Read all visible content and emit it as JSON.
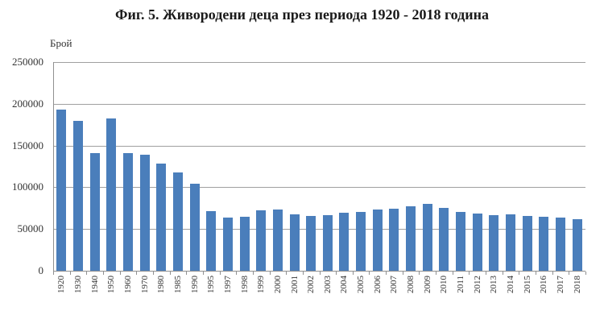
{
  "title": "Фиг. 5. Живородени деца през периода 1920 - 2018 година",
  "chart_data": {
    "type": "bar",
    "title": "Фиг. 5. Живородени деца през периода 1920 - 2018 година",
    "xlabel": "",
    "ylabel": "Брой",
    "ylim": [
      0,
      250000
    ],
    "yticks": [
      "0",
      "50000",
      "100000",
      "150000",
      "200000",
      "250000"
    ],
    "grid": true,
    "legend": "none",
    "bar_color": "#4a7ebb",
    "categories": [
      "1920",
      "1930",
      "1940",
      "1950",
      "1960",
      "1970",
      "1980",
      "1985",
      "1990",
      "1995",
      "1997",
      "1998",
      "1999",
      "2000",
      "2001",
      "2002",
      "2003",
      "2004",
      "2005",
      "2006",
      "2007",
      "2008",
      "2009",
      "2010",
      "2011",
      "2012",
      "2013",
      "2014",
      "2015",
      "2016",
      "2017",
      "2018"
    ],
    "values": [
      192800,
      179300,
      140500,
      182200,
      140500,
      138600,
      127900,
      118000,
      104700,
      71700,
      64000,
      65000,
      72000,
      73600,
      68000,
      66000,
      66900,
      69800,
      70700,
      73600,
      74600,
      77500,
      80400,
      75600,
      70700,
      69000,
      66500,
      67600,
      65600,
      64900,
      63900,
      62200
    ]
  }
}
